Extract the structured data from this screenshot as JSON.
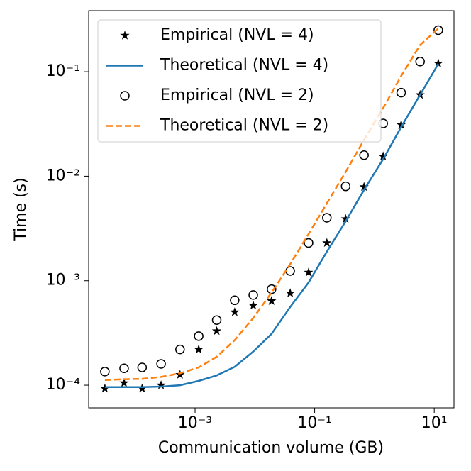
{
  "chart_data": {
    "type": "line",
    "xlabel": "Communication volume (GB)",
    "ylabel": "Time (s)",
    "xscale": "log",
    "yscale": "log",
    "xlim": [
      1.66e-05,
      21.4
    ],
    "ylim": [
      6.07e-05,
      0.384
    ],
    "xticks": [
      {
        "value": 0.001,
        "label": "10⁻³"
      },
      {
        "value": 0.1,
        "label": "10⁻¹"
      },
      {
        "value": 10,
        "label": "10¹"
      }
    ],
    "yticks": [
      {
        "value": 0.0001,
        "label": "10⁻⁴"
      },
      {
        "value": 0.001,
        "label": "10⁻³"
      },
      {
        "value": 0.01,
        "label": "10⁻²"
      },
      {
        "value": 0.1,
        "label": "10⁻¹"
      }
    ],
    "legend": "upper left",
    "x": [
      3.1e-05,
      6.5e-05,
      0.00013,
      0.00027,
      0.00056,
      0.00115,
      0.0023,
      0.0046,
      0.0094,
      0.019,
      0.039,
      0.079,
      0.16,
      0.33,
      0.67,
      1.4,
      2.8,
      5.8,
      11.7
    ],
    "series": [
      {
        "name": "Empirical (NVL = 4)",
        "color": "#000000",
        "marker": "star",
        "values": [
          9.3e-05,
          0.000105,
          9.3e-05,
          0.0001,
          0.000126,
          0.00022,
          0.00033,
          0.0005,
          0.00058,
          0.00064,
          0.00076,
          0.0012,
          0.0023,
          0.0039,
          0.0079,
          0.0155,
          0.031,
          0.06,
          0.12
        ]
      },
      {
        "name": "Theoretical (NVL = 4)",
        "color": "#1f77b4",
        "linestyle": "solid",
        "values": [
          9.6e-05,
          9.6e-05,
          9.6e-05,
          9.7e-05,
          0.0001,
          0.00011,
          0.000124,
          0.00015,
          0.00021,
          0.00031,
          0.00056,
          0.00096,
          0.0019,
          0.0037,
          0.0074,
          0.0146,
          0.0296,
          0.06,
          0.119
        ]
      },
      {
        "name": "Empirical (NVL = 2)",
        "color": "#000000",
        "marker": "circle",
        "values": [
          0.000135,
          0.000145,
          0.000148,
          0.00016,
          0.00022,
          0.000295,
          0.00042,
          0.00065,
          0.00073,
          0.00083,
          0.00124,
          0.0023,
          0.004,
          0.008,
          0.0159,
          0.032,
          0.063,
          0.125,
          0.25
        ]
      },
      {
        "name": "Theoretical (NVL = 2)",
        "color": "#ff7f0e",
        "linestyle": "dashed",
        "values": [
          0.000112,
          0.000114,
          0.000115,
          0.00012,
          0.00013,
          0.000148,
          0.000187,
          0.00027,
          0.00044,
          0.00077,
          0.00144,
          0.0028,
          0.0055,
          0.011,
          0.0223,
          0.045,
          0.091,
          0.18,
          0.26
        ]
      }
    ]
  }
}
